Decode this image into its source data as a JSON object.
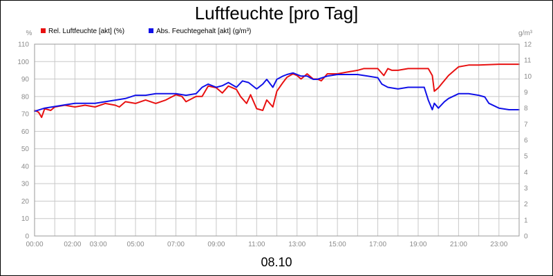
{
  "chart_data": {
    "type": "line",
    "title": "Luftfeuchte [pro Tag]",
    "date_label": "08.10",
    "y_left_unit": "%",
    "y_right_unit": "g/m³",
    "y_left_range": [
      0,
      110
    ],
    "y_right_range": [
      0,
      12
    ],
    "y_left_ticks": [
      0,
      10,
      20,
      30,
      40,
      50,
      60,
      70,
      80,
      90,
      100,
      110
    ],
    "y_right_ticks": [
      0,
      1,
      2,
      3,
      4,
      5,
      6,
      7,
      8,
      9,
      10,
      11,
      12
    ],
    "x_range_hours": [
      0,
      24
    ],
    "x_tick_hours": [
      0,
      2,
      3,
      5,
      7,
      9,
      11,
      13,
      15,
      17,
      19,
      21,
      23
    ],
    "x_tick_labels": [
      "00:00",
      "02:00",
      "03:00",
      "05:00",
      "07:00",
      "09:00",
      "11:00",
      "13:00",
      "15:00",
      "17:00",
      "19:00",
      "21:00",
      "23:00"
    ],
    "grid": true,
    "legend_position": "top-left",
    "series": [
      {
        "name": "Rel. Luftfeuchte [akt] (%)",
        "color": "#e81010",
        "axis": "left",
        "x": [
          0,
          0.2,
          0.35,
          0.5,
          0.8,
          1.0,
          1.5,
          2.0,
          2.5,
          3.0,
          3.5,
          4.0,
          4.2,
          4.5,
          5.0,
          5.5,
          6.0,
          6.5,
          7.0,
          7.3,
          7.5,
          8.0,
          8.3,
          8.6,
          9.0,
          9.3,
          9.6,
          10.0,
          10.2,
          10.5,
          10.7,
          11.0,
          11.3,
          11.5,
          11.8,
          12.0,
          12.3,
          12.5,
          12.8,
          13.0,
          13.2,
          13.5,
          13.8,
          14.0,
          14.2,
          14.5,
          15.0,
          15.5,
          16.0,
          16.3,
          16.7,
          17.0,
          17.3,
          17.5,
          17.7,
          18.0,
          18.5,
          19.0,
          19.5,
          19.7,
          19.8,
          20.0,
          20.5,
          20.8,
          21.0,
          21.5,
          22.0,
          23.0,
          24.0
        ],
        "values": [
          72,
          71,
          68,
          73,
          72,
          74,
          75,
          74,
          75,
          74,
          76,
          75,
          74,
          77,
          76,
          78,
          76,
          78,
          81,
          80,
          77,
          80,
          80,
          86,
          85,
          82,
          86,
          84,
          80,
          76,
          81,
          73,
          72,
          78,
          74,
          83,
          88,
          91,
          93,
          92,
          90,
          93,
          90,
          90,
          89,
          93,
          93,
          94,
          95,
          96,
          96,
          96,
          92,
          96,
          95,
          95,
          96,
          96,
          96,
          92,
          83,
          85,
          92,
          95,
          97,
          98,
          98,
          98.5,
          98.5
        ]
      },
      {
        "name": "Abs. Feuchtegehalt [akt] (g/m³)",
        "color": "#1010e8",
        "axis": "right",
        "x": [
          0,
          0.5,
          1.0,
          1.5,
          2.0,
          2.5,
          3.0,
          3.5,
          4.0,
          4.5,
          5.0,
          5.5,
          6.0,
          6.5,
          7.0,
          7.5,
          8.0,
          8.3,
          8.6,
          9.0,
          9.3,
          9.6,
          10.0,
          10.3,
          10.6,
          11.0,
          11.3,
          11.5,
          11.8,
          12.0,
          12.3,
          12.5,
          12.8,
          13.0,
          13.2,
          13.5,
          13.8,
          14.0,
          14.5,
          15.0,
          15.5,
          16.0,
          16.5,
          17.0,
          17.2,
          17.5,
          18.0,
          18.5,
          19.0,
          19.3,
          19.5,
          19.7,
          19.8,
          20.0,
          20.3,
          20.5,
          21.0,
          21.5,
          22.0,
          22.3,
          22.5,
          23.0,
          23.5,
          24.0
        ],
        "values": [
          7.8,
          8.0,
          8.1,
          8.2,
          8.3,
          8.3,
          8.3,
          8.4,
          8.5,
          8.6,
          8.8,
          8.8,
          8.9,
          8.9,
          8.9,
          8.8,
          8.9,
          9.3,
          9.5,
          9.3,
          9.4,
          9.6,
          9.3,
          9.7,
          9.6,
          9.2,
          9.5,
          9.8,
          9.3,
          9.8,
          10.0,
          10.1,
          10.2,
          10.1,
          10.0,
          10.0,
          9.8,
          9.8,
          10.0,
          10.1,
          10.1,
          10.1,
          10.0,
          9.9,
          9.5,
          9.3,
          9.2,
          9.3,
          9.3,
          9.3,
          8.5,
          7.9,
          8.3,
          8.0,
          8.4,
          8.6,
          8.9,
          8.9,
          8.8,
          8.7,
          8.3,
          8.0,
          7.9,
          7.9
        ]
      }
    ]
  }
}
